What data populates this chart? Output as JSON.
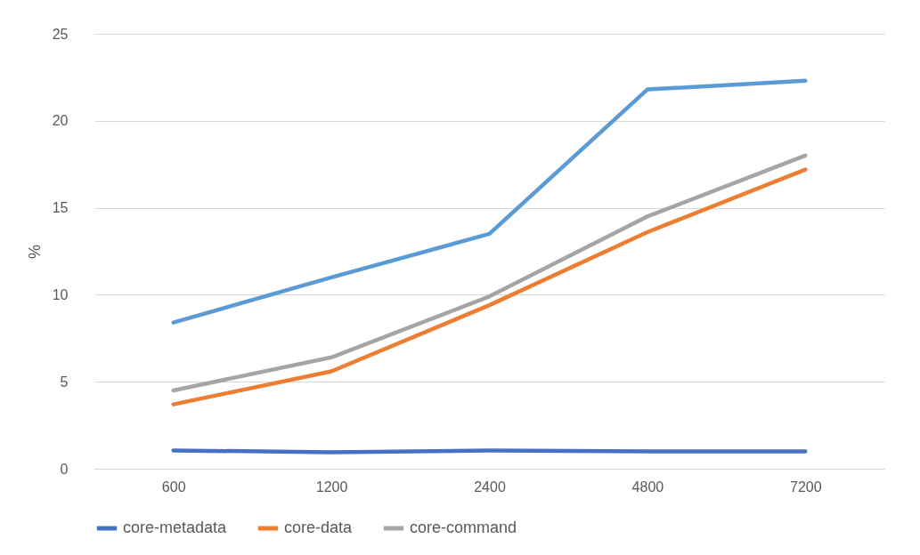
{
  "chart_data": {
    "type": "line",
    "ylabel": "%",
    "categories": [
      "600",
      "1200",
      "2400",
      "4800",
      "7200"
    ],
    "ylim": [
      0,
      25
    ],
    "yticks": [
      0,
      5,
      10,
      15,
      20,
      25
    ],
    "grid": "y",
    "legend": "bottom",
    "line_style": "solid",
    "marker": "none",
    "series": [
      {
        "name": "core-metadata",
        "color": "#4472c4",
        "values": [
          1.05,
          0.95,
          1.05,
          1.0,
          1.0
        ]
      },
      {
        "name": "core-data",
        "color": "#ed7d31",
        "values": [
          3.7,
          5.6,
          9.4,
          13.6,
          17.2
        ]
      },
      {
        "name": "core-command",
        "color": "#a5a5a5",
        "values": [
          4.5,
          6.4,
          9.9,
          14.5,
          18.0
        ]
      },
      {
        "color": "#5b9bd5",
        "values": [
          8.4,
          11.0,
          13.5,
          21.8,
          22.3
        ]
      }
    ]
  }
}
